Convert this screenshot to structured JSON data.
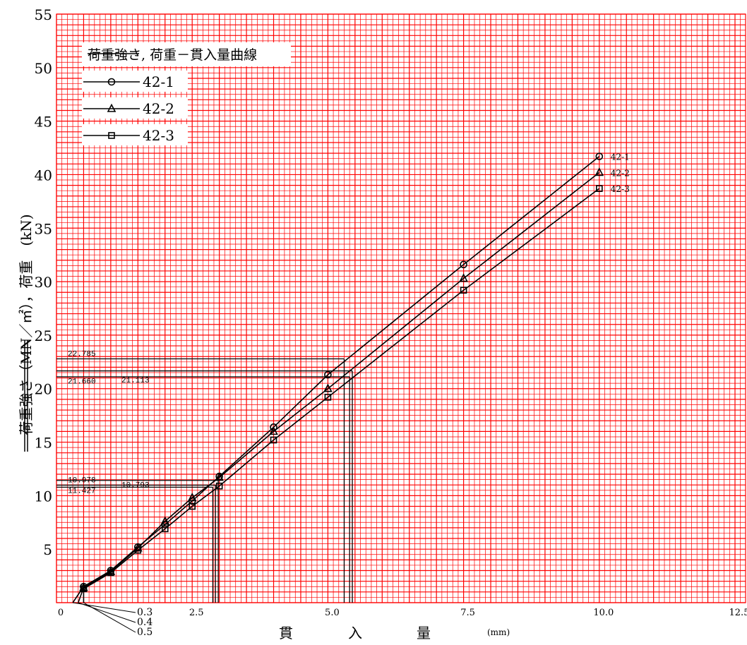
{
  "colors": {
    "grid": "#ff0000",
    "lines": "#000000",
    "background": "#ffffff"
  },
  "chart_data": {
    "type": "line",
    "legend": {
      "title_struck": "荷重強さ",
      "title_rest": ", 荷重－貫入量曲線",
      "placement": "top-left"
    },
    "ylabel_struck": "荷重強さ（MN／㎡）",
    "ylabel_rest": "，荷重　(kN)",
    "xlabel_chars": [
      "貫",
      "入",
      "量"
    ],
    "xunit": "(mm)",
    "xlim": [
      0,
      12.8
    ],
    "ylim": [
      0,
      55
    ],
    "x_ticks": [
      {
        "value": 0,
        "label": "0"
      },
      {
        "value": 2.5,
        "label": "2.5"
      },
      {
        "value": 5.0,
        "label": "5.0"
      },
      {
        "value": 7.5,
        "label": "7.5"
      },
      {
        "value": 10.0,
        "label": "10.0"
      },
      {
        "value": 12.5,
        "label": "12.5"
      }
    ],
    "y_ticks": [
      {
        "value": 5,
        "label": "5"
      },
      {
        "value": 10,
        "label": "10"
      },
      {
        "value": 15,
        "label": "15"
      },
      {
        "value": 20,
        "label": "20"
      },
      {
        "value": 25,
        "label": "25"
      },
      {
        "value": 30,
        "label": "30"
      },
      {
        "value": 35,
        "label": "35"
      },
      {
        "value": 40,
        "label": "40"
      },
      {
        "value": 45,
        "label": "45"
      },
      {
        "value": 50,
        "label": "50"
      },
      {
        "value": 55,
        "label": "55"
      }
    ],
    "grid": true,
    "series": [
      {
        "name": "42-1",
        "marker": "circle",
        "x": [
          0.5,
          1.0,
          1.5,
          2.0,
          2.5,
          3.0,
          4.0,
          5.0,
          7.5,
          10.0
        ],
        "y": [
          1.5,
          3.0,
          5.2,
          7.3,
          9.5,
          11.8,
          16.4,
          21.3,
          31.6,
          41.7
        ]
      },
      {
        "name": "42-2",
        "marker": "triangle",
        "x": [
          0.5,
          1.0,
          1.5,
          2.0,
          2.5,
          3.0,
          4.0,
          5.0,
          7.5,
          10.0
        ],
        "y": [
          1.4,
          2.9,
          5.1,
          7.6,
          9.8,
          11.7,
          16.0,
          20.0,
          30.3,
          40.2
        ]
      },
      {
        "name": "42-3",
        "marker": "square",
        "x": [
          0.5,
          1.0,
          1.5,
          2.0,
          2.5,
          3.0,
          4.0,
          5.0,
          7.5,
          10.0
        ],
        "y": [
          1.3,
          2.8,
          4.9,
          6.9,
          9.0,
          10.9,
          15.2,
          19.2,
          29.2,
          38.7
        ]
      }
    ],
    "corrected_values": [
      {
        "label": "22.785",
        "value": 22.785,
        "x_end": 5.3
      },
      {
        "label": "21.113",
        "value": 21.113,
        "x_end": 5.4
      },
      {
        "label": "21.660",
        "value": 21.66,
        "x_end": 5.45
      },
      {
        "label": "10.978",
        "value": 10.978,
        "x_end": 2.93
      },
      {
        "label": "10.793",
        "value": 10.793,
        "x_end": 2.88
      },
      {
        "label": "11.427",
        "value": 11.427,
        "x_end": 2.98
      }
    ],
    "origin_corrections": [
      {
        "label": "0.3",
        "value": 0.3
      },
      {
        "label": "0.4",
        "value": 0.4
      },
      {
        "label": "0.5",
        "value": 0.5
      }
    ]
  }
}
